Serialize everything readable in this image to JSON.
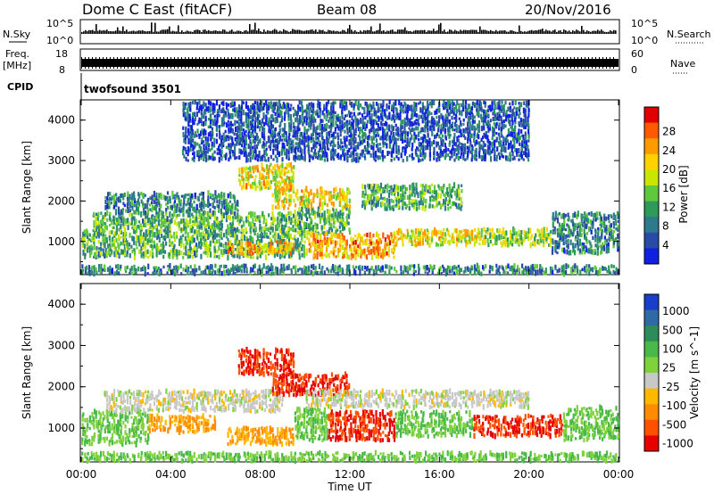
{
  "header": {
    "site": "Dome C East (fitACF)",
    "beam": "Beam 08",
    "date": "20/Nov/2016"
  },
  "status_panels": {
    "nsky": {
      "label": "N.Sky",
      "top_tick": "10^5",
      "bottom_tick": "10^0"
    },
    "nsearch": {
      "label": "N.Search",
      "top_tick": "10^5",
      "bottom_tick": "10^0"
    },
    "freq": {
      "label_line1": "Freq.",
      "label_line2": "[MHz]",
      "top_tick": "18",
      "bottom_tick": "8"
    },
    "nave": {
      "label": "Nave",
      "top_tick": "60",
      "bottom_tick": "0"
    },
    "cpid": {
      "label": "CPID",
      "value": "twofsound 3501"
    }
  },
  "power_colorbar": {
    "label": "Power [dB]",
    "ticks": [
      "28",
      "24",
      "20",
      "16",
      "12",
      "8",
      "4"
    ],
    "colors": [
      "#e00000",
      "#ff5a00",
      "#ff9b00",
      "#ffd200",
      "#c8e600",
      "#5fc83c",
      "#2e9a5a",
      "#2c7a8c",
      "#2a4aa8",
      "#1020e0"
    ]
  },
  "velocity_colorbar": {
    "label": "Velocity [m s^-1]",
    "ticks": [
      "1000",
      "500",
      "100",
      "25",
      "-25",
      "-100",
      "-500",
      "-1000"
    ],
    "colors": [
      "#1a3ec8",
      "#2d6aa6",
      "#2e8c5a",
      "#48b848",
      "#7fd23c",
      "#c8c8c8",
      "#ffb800",
      "#ff8c00",
      "#ff5000",
      "#e60000"
    ]
  },
  "chart_data": [
    {
      "type": "heatmap",
      "name": "power",
      "ylabel": "Slant Range [km]",
      "xlim": [
        "00:00",
        "00:00"
      ],
      "ylim": [
        180,
        4500
      ],
      "yticks": [
        1000,
        2000,
        3000,
        4000
      ],
      "regions": [
        {
          "t0": 0.0,
          "t1": 10.0,
          "r0": 600,
          "r1": 1300,
          "level": 12
        },
        {
          "t0": 0.5,
          "t1": 9.5,
          "r0": 1300,
          "r1": 1700,
          "level": 12
        },
        {
          "t0": 1.0,
          "t1": 7.0,
          "r0": 1700,
          "r1": 2200,
          "level": 8
        },
        {
          "t0": 6.5,
          "t1": 9.5,
          "r0": 700,
          "r1": 1000,
          "level": 24
        },
        {
          "t0": 7.0,
          "t1": 9.5,
          "r0": 2300,
          "r1": 2900,
          "level": 20
        },
        {
          "t0": 8.5,
          "t1": 12.0,
          "r0": 1800,
          "r1": 2300,
          "level": 20
        },
        {
          "t0": 9.5,
          "t1": 12.0,
          "r0": 1200,
          "r1": 1800,
          "level": 12
        },
        {
          "t0": 10.0,
          "t1": 14.0,
          "r0": 600,
          "r1": 1200,
          "level": 24
        },
        {
          "t0": 12.5,
          "t1": 17.0,
          "r0": 1800,
          "r1": 2400,
          "level": 12
        },
        {
          "t0": 14.0,
          "t1": 18.0,
          "r0": 900,
          "r1": 1300,
          "level": 20
        },
        {
          "t0": 18.0,
          "t1": 21.0,
          "r0": 900,
          "r1": 1300,
          "level": 16
        },
        {
          "t0": 21.0,
          "t1": 24.0,
          "r0": 700,
          "r1": 1700,
          "level": 8
        },
        {
          "t0": 0.0,
          "t1": 24.0,
          "r0": 200,
          "r1": 400,
          "level": 8
        },
        {
          "t0": 4.5,
          "t1": 20.0,
          "r0": 3000,
          "r1": 4450,
          "level": 4
        }
      ]
    },
    {
      "type": "heatmap",
      "name": "velocity",
      "ylabel": "Slant Range [km]",
      "xlabel": "Time UT",
      "xticks": [
        "00:00",
        "04:00",
        "08:00",
        "12:00",
        "16:00",
        "20:00",
        "00:00"
      ],
      "ylim": [
        180,
        4500
      ],
      "yticks": [
        1000,
        2000,
        3000,
        4000
      ],
      "regions": [
        {
          "t0": 0.0,
          "t1": 3.0,
          "r0": 600,
          "r1": 1400,
          "velocity": 100
        },
        {
          "t0": 3.0,
          "t1": 6.0,
          "r0": 900,
          "r1": 1300,
          "velocity": -100
        },
        {
          "t0": 1.0,
          "t1": 9.0,
          "r0": 1400,
          "r1": 1900,
          "velocity": 0
        },
        {
          "t0": 6.5,
          "t1": 9.5,
          "r0": 600,
          "r1": 1000,
          "velocity": -100
        },
        {
          "t0": 7.0,
          "t1": 9.5,
          "r0": 2300,
          "r1": 2900,
          "velocity": -500
        },
        {
          "t0": 8.5,
          "t1": 12.0,
          "r0": 1800,
          "r1": 2300,
          "velocity": -500
        },
        {
          "t0": 9.5,
          "t1": 11.0,
          "r0": 700,
          "r1": 1500,
          "velocity": 100
        },
        {
          "t0": 11.0,
          "t1": 14.0,
          "r0": 700,
          "r1": 1400,
          "velocity": -500
        },
        {
          "t0": 14.0,
          "t1": 17.5,
          "r0": 800,
          "r1": 1400,
          "velocity": 100
        },
        {
          "t0": 17.5,
          "t1": 21.5,
          "r0": 800,
          "r1": 1300,
          "velocity": -500
        },
        {
          "t0": 21.5,
          "t1": 24.0,
          "r0": 700,
          "r1": 1500,
          "velocity": 100
        },
        {
          "t0": 0.0,
          "t1": 24.0,
          "r0": 200,
          "r1": 400,
          "velocity": 100
        },
        {
          "t0": 10.0,
          "t1": 20.0,
          "r0": 1500,
          "r1": 1900,
          "velocity": 0
        }
      ]
    }
  ]
}
